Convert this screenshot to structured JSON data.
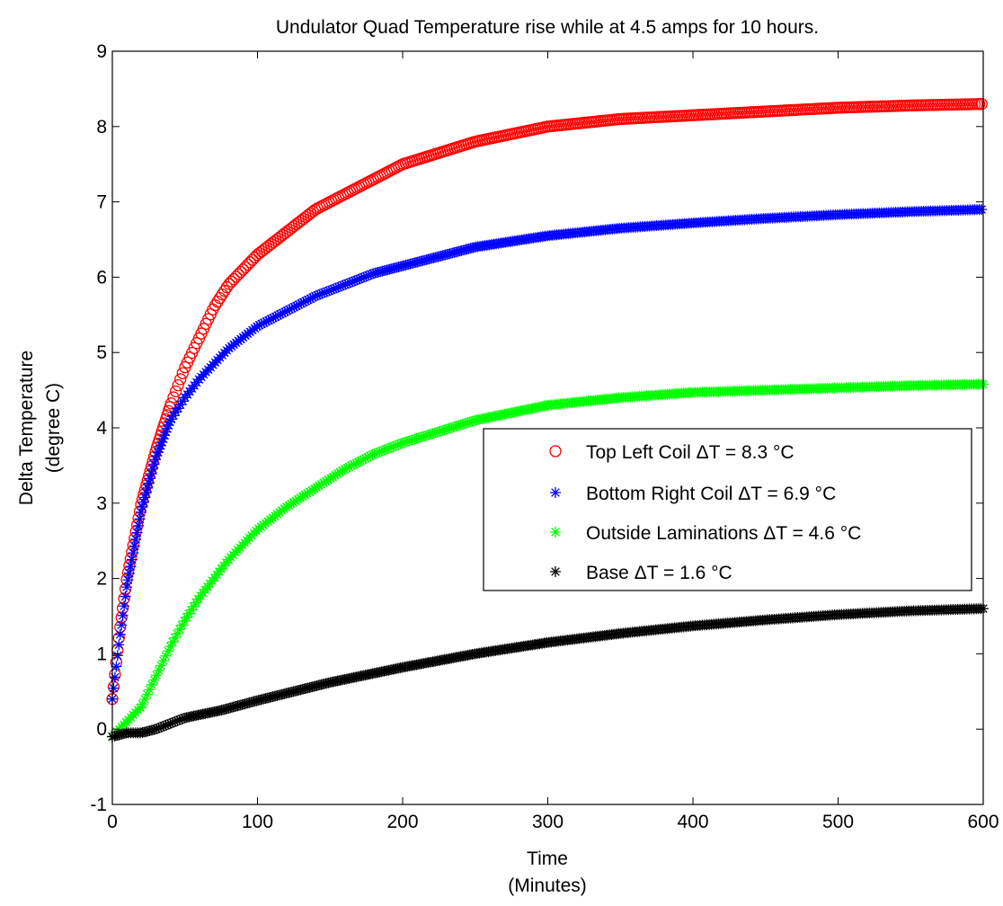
{
  "chart_data": {
    "type": "scatter",
    "title": "Undulator Quad Temperature rise while at 4.5 amps for 10 hours.",
    "xlabel": [
      "Time",
      "(Minutes)"
    ],
    "ylabel": [
      "Delta Temperature",
      "(degree C)"
    ],
    "xlim": [
      0,
      600
    ],
    "ylim": [
      -1,
      9
    ],
    "xticks": [
      0,
      100,
      200,
      300,
      400,
      500,
      600
    ],
    "yticks": [
      -1,
      0,
      1,
      2,
      3,
      4,
      5,
      6,
      7,
      8,
      9
    ],
    "grid": false,
    "legend_position": "middle-right",
    "series": [
      {
        "name": "Top Left Coil ΔT = 8.3 °C",
        "marker": "circle",
        "color": "#ff0000",
        "x": [
          0,
          5,
          10,
          20,
          30,
          40,
          50,
          60,
          70,
          80,
          90,
          100,
          120,
          140,
          160,
          180,
          200,
          250,
          300,
          350,
          400,
          450,
          500,
          550,
          600
        ],
        "y": [
          0.4,
          1.3,
          2.0,
          3.0,
          3.7,
          4.3,
          4.8,
          5.2,
          5.6,
          5.9,
          6.1,
          6.3,
          6.6,
          6.9,
          7.1,
          7.3,
          7.5,
          7.8,
          8.0,
          8.1,
          8.15,
          8.2,
          8.25,
          8.28,
          8.3
        ]
      },
      {
        "name": "Bottom Right Coil ΔT = 6.9 °C",
        "marker": "asterisk",
        "color": "#0000ff",
        "x": [
          0,
          5,
          10,
          20,
          30,
          40,
          50,
          60,
          70,
          80,
          90,
          100,
          120,
          140,
          160,
          180,
          200,
          250,
          300,
          350,
          400,
          450,
          500,
          550,
          600
        ],
        "y": [
          0.4,
          1.2,
          1.9,
          2.9,
          3.6,
          4.1,
          4.4,
          4.65,
          4.85,
          5.05,
          5.2,
          5.35,
          5.55,
          5.75,
          5.9,
          6.05,
          6.15,
          6.4,
          6.55,
          6.65,
          6.72,
          6.78,
          6.83,
          6.87,
          6.9
        ]
      },
      {
        "name": "Outside Laminations ΔT = 4.6 °C",
        "marker": "asterisk",
        "color": "#00ff00",
        "x": [
          0,
          10,
          20,
          30,
          40,
          50,
          60,
          80,
          100,
          120,
          140,
          160,
          180,
          200,
          250,
          300,
          350,
          400,
          450,
          500,
          550,
          600
        ],
        "y": [
          -0.1,
          0.1,
          0.3,
          0.7,
          1.1,
          1.45,
          1.75,
          2.25,
          2.65,
          2.95,
          3.2,
          3.45,
          3.65,
          3.8,
          4.1,
          4.3,
          4.4,
          4.47,
          4.5,
          4.53,
          4.56,
          4.58
        ]
      },
      {
        "name": "Base ΔT = 1.6 °C",
        "marker": "asterisk",
        "color": "#000000",
        "x": [
          0,
          10,
          20,
          30,
          50,
          75,
          100,
          125,
          150,
          175,
          200,
          250,
          300,
          350,
          400,
          450,
          500,
          550,
          600
        ],
        "y": [
          -0.1,
          -0.05,
          -0.05,
          0.0,
          0.15,
          0.25,
          0.38,
          0.5,
          0.62,
          0.72,
          0.82,
          1.0,
          1.15,
          1.27,
          1.37,
          1.45,
          1.52,
          1.57,
          1.6
        ]
      }
    ]
  }
}
